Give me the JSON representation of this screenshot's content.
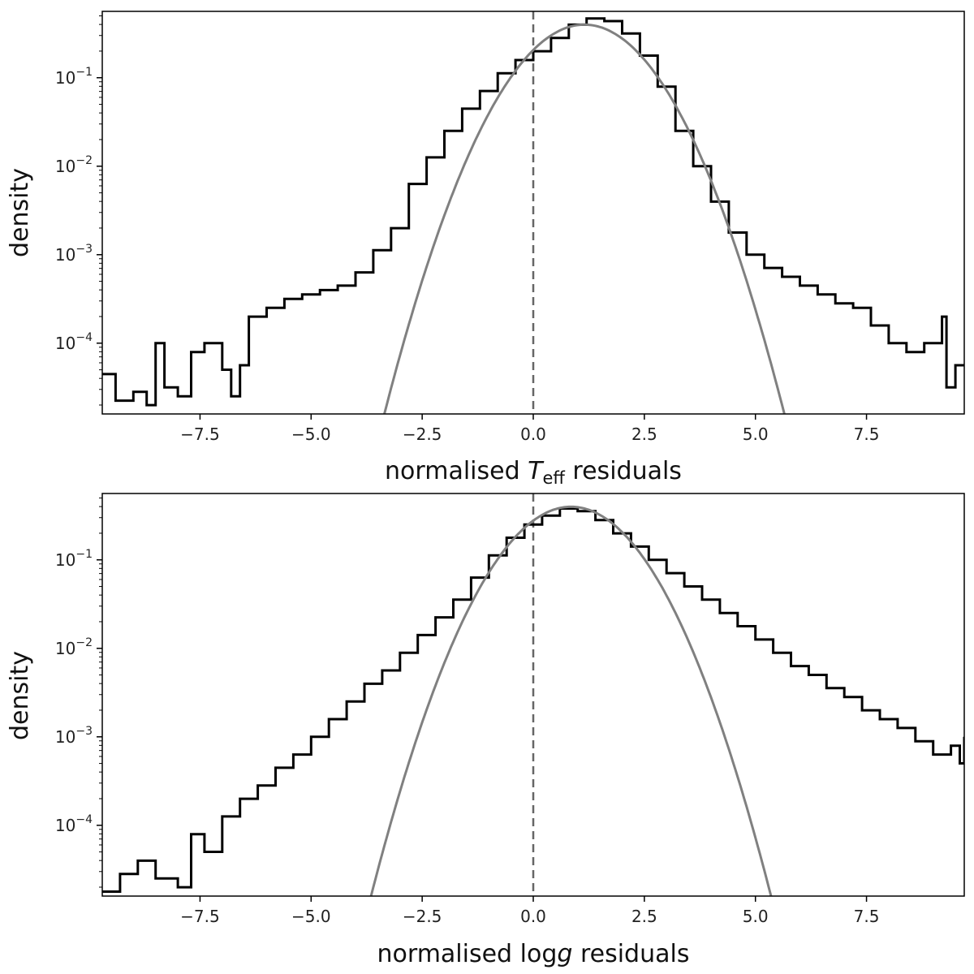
{
  "colors": {
    "histogram": "#000000",
    "gaussian": "#808080",
    "zero_line": "#666666",
    "frame": "#000000"
  },
  "chart_data": [
    {
      "type": "line",
      "title": "",
      "xlabel_parts": {
        "pre": "normalised ",
        "var": "T",
        "sub": "eff",
        "post": " residuals"
      },
      "ylabel": "density",
      "xlim": [
        -9.7,
        9.7
      ],
      "ylog_range": [
        -4.8,
        -0.25
      ],
      "xticks": [
        -7.5,
        -5.0,
        -2.5,
        0.0,
        2.5,
        5.0,
        7.5
      ],
      "xtick_labels": [
        "−7.5",
        "−5.0",
        "−2.5",
        "0.0",
        "2.5",
        "5.0",
        "7.5"
      ],
      "yticks": [
        -1,
        -2,
        -3,
        -4
      ],
      "ytick_base": "10",
      "ytick_exponents": [
        "−1",
        "−2",
        "−3",
        "−4"
      ],
      "zero_line_x": 0.0,
      "series": [
        {
          "name": "histogram",
          "style": "step",
          "points": [
            [
              -9.7,
              -4.35
            ],
            [
              -9.4,
              -4.65
            ],
            [
              -9.0,
              -4.55
            ],
            [
              -8.7,
              -4.7
            ],
            [
              -8.5,
              -4.0
            ],
            [
              -8.3,
              -4.5
            ],
            [
              -8.0,
              -4.6
            ],
            [
              -7.7,
              -4.1
            ],
            [
              -7.4,
              -4.0
            ],
            [
              -7.0,
              -4.3
            ],
            [
              -6.8,
              -4.6
            ],
            [
              -6.6,
              -4.25
            ],
            [
              -6.4,
              -3.7
            ],
            [
              -6.0,
              -3.6
            ],
            [
              -5.6,
              -3.5
            ],
            [
              -5.2,
              -3.45
            ],
            [
              -4.8,
              -3.4
            ],
            [
              -4.4,
              -3.35
            ],
            [
              -4.0,
              -3.2
            ],
            [
              -3.6,
              -2.95
            ],
            [
              -3.2,
              -2.7
            ],
            [
              -2.8,
              -2.2
            ],
            [
              -2.4,
              -1.9
            ],
            [
              -2.0,
              -1.6
            ],
            [
              -1.6,
              -1.35
            ],
            [
              -1.2,
              -1.15
            ],
            [
              -0.8,
              -0.95
            ],
            [
              -0.4,
              -0.8
            ],
            [
              0.0,
              -0.7
            ],
            [
              0.4,
              -0.55
            ],
            [
              0.8,
              -0.4
            ],
            [
              1.2,
              -0.33
            ],
            [
              1.6,
              -0.36
            ],
            [
              2.0,
              -0.5
            ],
            [
              2.4,
              -0.75
            ],
            [
              2.8,
              -1.1
            ],
            [
              3.2,
              -1.6
            ],
            [
              3.6,
              -2.0
            ],
            [
              4.0,
              -2.4
            ],
            [
              4.4,
              -2.75
            ],
            [
              4.8,
              -3.0
            ],
            [
              5.2,
              -3.15
            ],
            [
              5.6,
              -3.25
            ],
            [
              6.0,
              -3.35
            ],
            [
              6.4,
              -3.45
            ],
            [
              6.8,
              -3.55
            ],
            [
              7.2,
              -3.6
            ],
            [
              7.6,
              -3.8
            ],
            [
              8.0,
              -4.0
            ],
            [
              8.4,
              -4.1
            ],
            [
              8.8,
              -4.0
            ],
            [
              9.2,
              -3.7
            ],
            [
              9.3,
              -4.5
            ],
            [
              9.5,
              -4.25
            ],
            [
              9.7,
              -4.25
            ]
          ]
        },
        {
          "name": "gaussian",
          "style": "curve",
          "mean": 1.15,
          "sigma": 1.0,
          "peak_log": -0.4,
          "points": [
            [
              -3.5,
              -4.8
            ],
            [
              -3.0,
              -4.13
            ],
            [
              -2.5,
              -3.29
            ],
            [
              -2.0,
              -2.55
            ],
            [
              -1.5,
              -1.92
            ],
            [
              -1.0,
              -1.4
            ],
            [
              -0.5,
              -0.99
            ],
            [
              0.0,
              -0.69
            ],
            [
              0.5,
              -0.49
            ],
            [
              1.15,
              -0.4
            ],
            [
              1.5,
              -0.43
            ],
            [
              2.0,
              -0.56
            ],
            [
              2.5,
              -0.8
            ],
            [
              3.0,
              -1.14
            ],
            [
              3.5,
              -1.6
            ],
            [
              4.0,
              -2.16
            ],
            [
              4.5,
              -2.84
            ],
            [
              5.0,
              -3.62
            ],
            [
              5.5,
              -4.51
            ],
            [
              5.8,
              -4.8
            ]
          ]
        }
      ]
    },
    {
      "type": "line",
      "title": "",
      "xlabel_parts": {
        "pre": "normalised log",
        "var": "g",
        "sub": "",
        "post": " residuals"
      },
      "ylabel": "density",
      "xlim": [
        -9.7,
        9.7
      ],
      "ylog_range": [
        -4.8,
        -0.25
      ],
      "xticks": [
        -7.5,
        -5.0,
        -2.5,
        0.0,
        2.5,
        5.0,
        7.5
      ],
      "xtick_labels": [
        "−7.5",
        "−5.0",
        "−2.5",
        "0.0",
        "2.5",
        "5.0",
        "7.5"
      ],
      "yticks": [
        -1,
        -2,
        -3,
        -4
      ],
      "ytick_base": "10",
      "ytick_exponents": [
        "−1",
        "−2",
        "−3",
        "−4"
      ],
      "zero_line_x": 0.0,
      "series": [
        {
          "name": "histogram",
          "style": "step",
          "points": [
            [
              -9.7,
              -4.75
            ],
            [
              -9.3,
              -4.55
            ],
            [
              -8.9,
              -4.4
            ],
            [
              -8.5,
              -4.6
            ],
            [
              -8.0,
              -4.7
            ],
            [
              -7.7,
              -4.1
            ],
            [
              -7.4,
              -4.3
            ],
            [
              -7.0,
              -3.9
            ],
            [
              -6.6,
              -3.7
            ],
            [
              -6.2,
              -3.55
            ],
            [
              -5.8,
              -3.35
            ],
            [
              -5.4,
              -3.2
            ],
            [
              -5.0,
              -3.0
            ],
            [
              -4.6,
              -2.8
            ],
            [
              -4.2,
              -2.6
            ],
            [
              -3.8,
              -2.4
            ],
            [
              -3.4,
              -2.25
            ],
            [
              -3.0,
              -2.05
            ],
            [
              -2.6,
              -1.85
            ],
            [
              -2.2,
              -1.65
            ],
            [
              -1.8,
              -1.45
            ],
            [
              -1.4,
              -1.2
            ],
            [
              -1.0,
              -0.95
            ],
            [
              -0.6,
              -0.75
            ],
            [
              -0.2,
              -0.6
            ],
            [
              0.2,
              -0.5
            ],
            [
              0.6,
              -0.42
            ],
            [
              1.0,
              -0.45
            ],
            [
              1.4,
              -0.55
            ],
            [
              1.8,
              -0.7
            ],
            [
              2.2,
              -0.85
            ],
            [
              2.6,
              -1.0
            ],
            [
              3.0,
              -1.15
            ],
            [
              3.4,
              -1.3
            ],
            [
              3.8,
              -1.45
            ],
            [
              4.2,
              -1.6
            ],
            [
              4.6,
              -1.75
            ],
            [
              5.0,
              -1.9
            ],
            [
              5.4,
              -2.05
            ],
            [
              5.8,
              -2.2
            ],
            [
              6.2,
              -2.3
            ],
            [
              6.6,
              -2.45
            ],
            [
              7.0,
              -2.55
            ],
            [
              7.4,
              -2.7
            ],
            [
              7.8,
              -2.8
            ],
            [
              8.2,
              -2.9
            ],
            [
              8.6,
              -3.05
            ],
            [
              9.0,
              -3.2
            ],
            [
              9.4,
              -3.1
            ],
            [
              9.6,
              -3.3
            ],
            [
              9.7,
              -3.0
            ]
          ]
        },
        {
          "name": "gaussian",
          "style": "curve",
          "mean": 0.85,
          "sigma": 1.0,
          "peak_log": -0.4,
          "points": [
            [
              -3.7,
              -4.8
            ],
            [
              -3.5,
              -4.51
            ],
            [
              -3.0,
              -3.62
            ],
            [
              -2.5,
              -2.84
            ],
            [
              -2.0,
              -2.16
            ],
            [
              -1.5,
              -1.6
            ],
            [
              -1.0,
              -1.14
            ],
            [
              -0.5,
              -0.8
            ],
            [
              0.0,
              -0.56
            ],
            [
              0.5,
              -0.43
            ],
            [
              0.85,
              -0.4
            ],
            [
              1.5,
              -0.49
            ],
            [
              2.0,
              -0.69
            ],
            [
              2.5,
              -0.99
            ],
            [
              3.0,
              -1.4
            ],
            [
              3.5,
              -1.92
            ],
            [
              4.0,
              -2.55
            ],
            [
              4.5,
              -3.29
            ],
            [
              5.0,
              -4.13
            ],
            [
              5.5,
              -4.8
            ]
          ]
        }
      ]
    }
  ]
}
